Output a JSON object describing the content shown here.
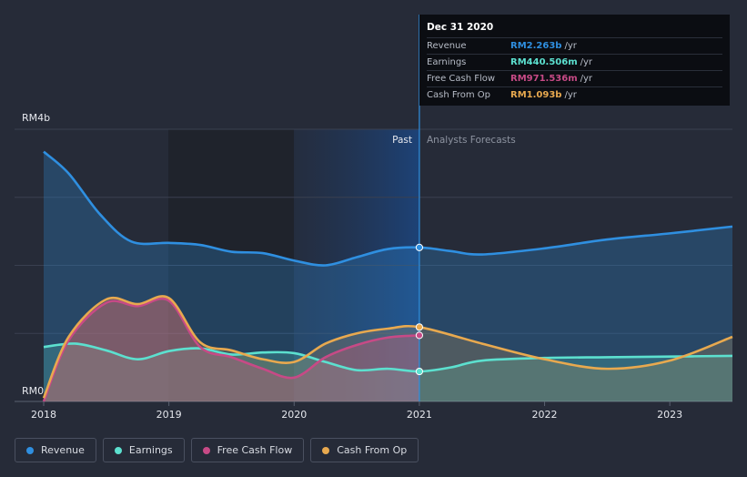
{
  "chart_data": {
    "type": "area",
    "title": "",
    "y_max_label": "RM4b",
    "y_min_label": "RM0",
    "ylim": [
      0,
      4
    ],
    "xlim": [
      2018,
      2023.5
    ],
    "x_ticks": [
      "2018",
      "2019",
      "2020",
      "2021",
      "2022",
      "2023"
    ],
    "x_tick_values": [
      2018,
      2019,
      2020,
      2021,
      2022,
      2023
    ],
    "divider_x": 2021,
    "past_label": "Past",
    "forecast_label": "Analysts Forecasts",
    "series": [
      {
        "name": "Revenue",
        "color": "#2f8fe0",
        "x": [
          2018,
          2018.2,
          2018.45,
          2018.7,
          2019,
          2019.25,
          2019.5,
          2019.75,
          2020,
          2020.25,
          2020.5,
          2020.75,
          2021,
          2021.25,
          2021.5,
          2022,
          2022.5,
          2023,
          2023.5
        ],
        "values": [
          3.67,
          3.35,
          2.75,
          2.35,
          2.33,
          2.3,
          2.2,
          2.18,
          2.07,
          2.0,
          2.12,
          2.24,
          2.263,
          2.21,
          2.16,
          2.25,
          2.38,
          2.47,
          2.57
        ]
      },
      {
        "name": "Earnings",
        "color": "#5ce0cf",
        "x": [
          2018,
          2018.25,
          2018.5,
          2018.75,
          2019,
          2019.25,
          2019.5,
          2019.75,
          2020,
          2020.25,
          2020.5,
          2020.75,
          2021,
          2021.25,
          2021.5,
          2022,
          2022.5,
          2023,
          2023.5
        ],
        "values": [
          0.8,
          0.85,
          0.75,
          0.62,
          0.74,
          0.78,
          0.69,
          0.72,
          0.71,
          0.58,
          0.46,
          0.48,
          0.440506,
          0.5,
          0.6,
          0.64,
          0.65,
          0.66,
          0.67
        ]
      },
      {
        "name": "Free Cash Flow",
        "color": "#c74a86",
        "x": [
          2018,
          2018.2,
          2018.5,
          2018.75,
          2019,
          2019.25,
          2019.5,
          2019.75,
          2020,
          2020.25,
          2020.5,
          2020.75,
          2021
        ],
        "values": [
          0.0,
          0.9,
          1.45,
          1.4,
          1.48,
          0.8,
          0.65,
          0.48,
          0.35,
          0.65,
          0.83,
          0.94,
          0.971536
        ]
      },
      {
        "name": "Cash From Op",
        "color": "#e8a94f",
        "x": [
          2018,
          2018.2,
          2018.5,
          2018.75,
          2019,
          2019.25,
          2019.5,
          2019.75,
          2020,
          2020.25,
          2020.5,
          2020.75,
          2021,
          2021.5,
          2022,
          2022.5,
          2023,
          2023.5
        ],
        "values": [
          0.05,
          0.95,
          1.5,
          1.43,
          1.52,
          0.87,
          0.75,
          0.62,
          0.58,
          0.85,
          1.0,
          1.07,
          1.093,
          0.85,
          0.62,
          0.48,
          0.6,
          0.95
        ]
      }
    ]
  },
  "tooltip": {
    "date": "Dec 31 2020",
    "rows": [
      {
        "label": "Revenue",
        "value": "RM2.263b",
        "unit": "/yr",
        "color": "#2f8fe0"
      },
      {
        "label": "Earnings",
        "value": "RM440.506m",
        "unit": "/yr",
        "color": "#5ce0cf"
      },
      {
        "label": "Free Cash Flow",
        "value": "RM971.536m",
        "unit": "/yr",
        "color": "#c74a86"
      },
      {
        "label": "Cash From Op",
        "value": "RM1.093b",
        "unit": "/yr",
        "color": "#e8a94f"
      }
    ]
  },
  "legend": [
    {
      "label": "Revenue",
      "color": "#2f8fe0"
    },
    {
      "label": "Earnings",
      "color": "#5ce0cf"
    },
    {
      "label": "Free Cash Flow",
      "color": "#c74a86"
    },
    {
      "label": "Cash From Op",
      "color": "#e8a94f"
    }
  ]
}
